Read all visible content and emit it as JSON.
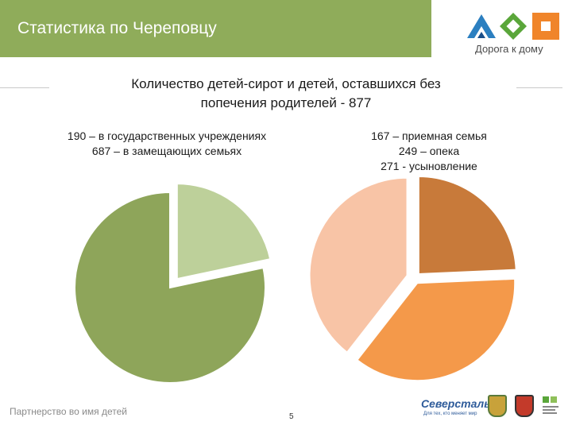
{
  "header": {
    "title": "Статистика по Череповцу"
  },
  "logo": {
    "caption": "Дорога к дому"
  },
  "main_title": {
    "line1": "Количество детей-сирот и детей, оставшихся без",
    "line2": "попечения родителей - 877"
  },
  "legend_left": {
    "line1": "190 – в государственных учреждениях",
    "line2": "687 – в замещающих семьях"
  },
  "legend_right": {
    "line1": "167 – приемная семья",
    "line2": "249 – опека",
    "line3": "271 - усыновление"
  },
  "footer": {
    "text": "Партнерство во имя детей",
    "page_number": "5",
    "sponsor": "Северсталь",
    "sponsor_sub": "Для тех, кто меняет мир"
  },
  "colors": {
    "header": "#8fac5a",
    "left_slices": [
      "#bdd09a",
      "#8ea55a"
    ],
    "right_slices": [
      "#c87a3a",
      "#f4994a",
      "#f8c4a6"
    ]
  },
  "chart_data": [
    {
      "type": "pie",
      "exploded": true,
      "slices": [
        {
          "label": "в государственных учреждениях",
          "value": 190,
          "color": "#bdd09a"
        },
        {
          "label": "в замещающих семьях",
          "value": 687,
          "color": "#8ea55a"
        }
      ]
    },
    {
      "type": "pie",
      "exploded": true,
      "slices": [
        {
          "label": "приемная семья",
          "value": 167,
          "color": "#c87a3a"
        },
        {
          "label": "опека",
          "value": 249,
          "color": "#f4994a"
        },
        {
          "label": "усыновление",
          "value": 271,
          "color": "#f8c4a6"
        }
      ]
    }
  ]
}
